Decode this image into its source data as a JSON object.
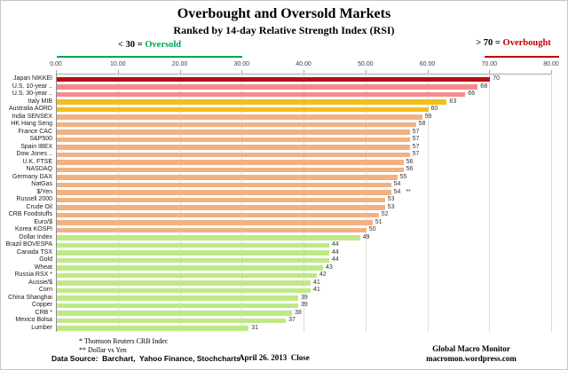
{
  "title": "Overbought and Oversold Markets",
  "subtitle": "Ranked by 14-day Relative Strength Index (RSI)",
  "annotations": {
    "oversold": {
      "prefix": "< 30 = ",
      "label": "Oversold",
      "color": "#00A550",
      "range_from": 0,
      "range_to": 30
    },
    "overbought": {
      "prefix": "> 70 = ",
      "label": "Overbought",
      "color": "#C00000",
      "range_from": 69,
      "range_to": 81
    }
  },
  "chart_data": {
    "type": "bar",
    "orientation": "horizontal",
    "title": "Overbought and Oversold Markets",
    "subtitle": "Ranked by 14-day Relative Strength Index (RSI)",
    "xlim": [
      0,
      80
    ],
    "grid": true,
    "x_tick_labels": [
      "0.00",
      "10.00",
      "20.00",
      "30.00",
      "40.00",
      "50.00",
      "60.00",
      "70.00",
      "80.00"
    ],
    "categories": [
      "Japan NIKKEI",
      "U.S. 10-year ..",
      "U.S. 30-year ..",
      "Italy MIB",
      "Australia AORD",
      "India SENSEX",
      "HK Hang Seng",
      "France CAC",
      "S&P500",
      "Spain IBEX",
      "Dow Jones ..",
      "U.K. FTSE",
      "NASDAQ",
      "Germany DAX",
      "NatGas",
      "$/Yen",
      "Russell 2000",
      "Crude Oil",
      "CRB Foodstuffs",
      "Euro/$",
      "Korea KOSPI",
      "Dollar Index",
      "Brazil BOVESPA",
      "Canada TSX",
      "Gold",
      "Wheat",
      "Russia RSX *",
      "Aussie/$",
      "Corn",
      "China Shanghai",
      "Copper",
      "CRB *",
      "Mexico Bolsa",
      "Lumber"
    ],
    "values": [
      70,
      68,
      66,
      63,
      60,
      59,
      58,
      57,
      57,
      57,
      57,
      56,
      56,
      55,
      54,
      54,
      53,
      53,
      52,
      51,
      50,
      49,
      44,
      44,
      44,
      43,
      42,
      41,
      41,
      39,
      39,
      38,
      37,
      31
    ],
    "bar_colors": [
      "#B20F12",
      "#F58A8D",
      "#F58A8D",
      "#F1BE1E",
      "#F1BE1E",
      "#F1B183",
      "#F1B183",
      "#F1B183",
      "#F1B183",
      "#F1B183",
      "#F1B183",
      "#F1B183",
      "#F1B183",
      "#F1B183",
      "#F1B183",
      "#F1B183",
      "#F1B183",
      "#F1B183",
      "#F1B183",
      "#F1B183",
      "#F1B183",
      "#BEE986",
      "#BEE986",
      "#BEE986",
      "#BEE986",
      "#BEE986",
      "#BEE986",
      "#BEE986",
      "#BEE986",
      "#BEE986",
      "#BEE986",
      "#BEE986",
      "#BEE986",
      "#BEE986"
    ],
    "value_notes": {
      "15": "**"
    }
  },
  "footnotes": {
    "line1": "* Thomson Reuters CRB Indec",
    "line2": "** Dollar vs Yen"
  },
  "source_line": "Data Source:  Barchart,  Yahoo Finance, Stochcharts",
  "date_line": "April 26. 2013  Close",
  "credit": {
    "line1": "Global Macro Monitor",
    "line2": "macromon.wordpress.com"
  }
}
